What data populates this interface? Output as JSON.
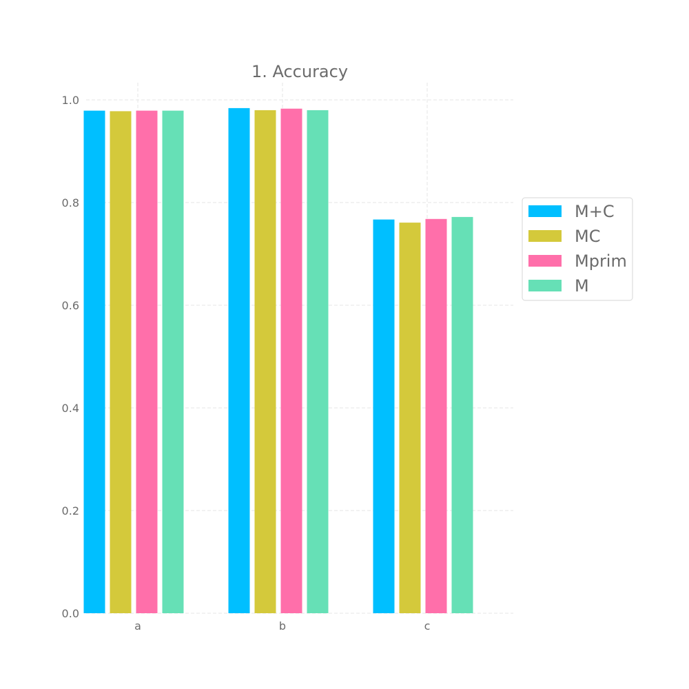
{
  "chart_data": {
    "type": "bar",
    "title": "1. Accuracy",
    "xlabel": "",
    "ylabel": "",
    "categories": [
      "a",
      "b",
      "c"
    ],
    "series": [
      {
        "name": "M+C",
        "color": "#00bfff",
        "values": [
          0.979,
          0.984,
          0.767
        ]
      },
      {
        "name": "MC",
        "color": "#d4c93b",
        "values": [
          0.978,
          0.98,
          0.761
        ]
      },
      {
        "name": "Mprim",
        "color": "#ff6faa",
        "values": [
          0.979,
          0.983,
          0.768
        ]
      },
      {
        "name": "M",
        "color": "#66e0b6",
        "values": [
          0.979,
          0.98,
          0.772
        ]
      }
    ],
    "ylim": [
      0,
      1.0
    ],
    "yticks": [
      "0.0",
      "0.2",
      "0.4",
      "0.6",
      "0.8",
      "1.0"
    ],
    "grid": true,
    "legend_position": "right"
  }
}
